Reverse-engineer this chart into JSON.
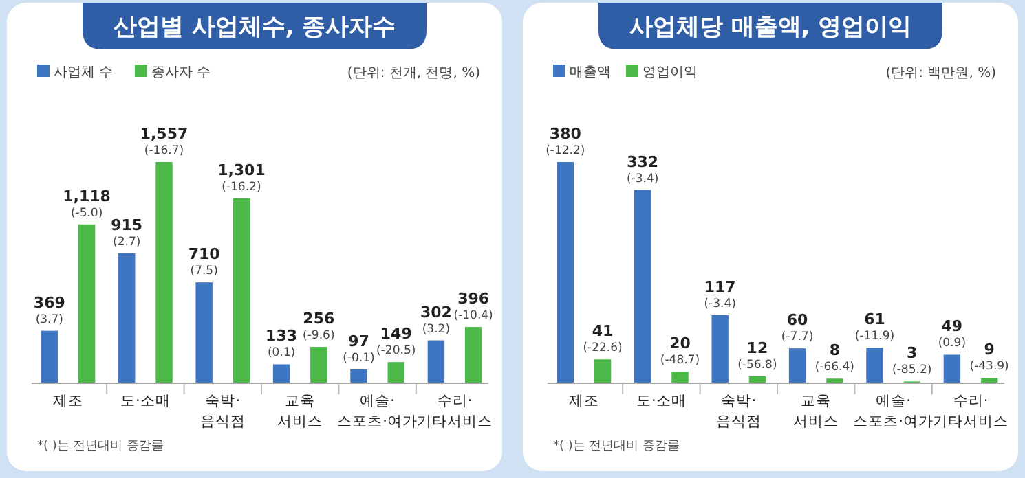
{
  "chart_data": [
    {
      "type": "bar",
      "title": "산업별 사업체수, 종사자수",
      "subtitle": "(단위: 천개, 천명, %)",
      "annotations": [
        "*(   )는 전년대비 증감률"
      ],
      "categories": [
        "제조",
        "도·소매",
        "숙박·\n음식점",
        "교육\n서비스",
        "예술·\n스포츠·여가",
        "수리·\n기타서비스"
      ],
      "legend": "top left",
      "series": [
        {
          "name": "사업체 수",
          "color": "#3f76c2",
          "values": [
            369,
            915,
            710,
            133,
            97,
            302
          ],
          "value_labels": [
            "369\n(3.7)",
            "915\n(2.7)",
            "710\n(7.5)",
            "133\n(0.1)",
            "97\n(-0.1)",
            "302\n(3.2)"
          ]
        },
        {
          "name": "종사자 수",
          "color": "#4cb848",
          "values": [
            1118,
            1557,
            1301,
            256,
            149,
            396
          ],
          "value_labels": [
            "1,118\n(-5.0)",
            "1,557\n(-16.7)",
            "1,301\n(-16.2)",
            "256\n(-9.6)",
            "149\n(-20.5)",
            "396\n(-10.4)"
          ]
        }
      ]
    },
    {
      "type": "bar",
      "title": "사업체당 매출액, 영업이익",
      "subtitle": "(단위: 백만원, %)",
      "annotations": [
        "*(   )는 전년대비 증감률"
      ],
      "categories": [
        "제조",
        "도·소매",
        "숙박·\n음식점",
        "교육\n서비스",
        "예술·\n스포츠·여가",
        "수리·\n기타서비스"
      ],
      "legend": "top left",
      "series": [
        {
          "name": "매출액",
          "color": "#3f76c2",
          "values": [
            380,
            332,
            117,
            60,
            61,
            49
          ],
          "value_labels": [
            "380\n(-12.2)",
            "332\n(-3.4)",
            "117\n(-3.4)",
            "60\n(-7.7)",
            "61\n(-11.9)",
            "49\n(0.9)"
          ]
        },
        {
          "name": "영업이익",
          "color": "#4cb848",
          "values": [
            41,
            20,
            12,
            8,
            3,
            9
          ],
          "value_labels": [
            "41\n(-22.6)",
            "20\n(-48.7)",
            "12\n(-56.8)",
            "8\n(-66.4)",
            "3\n(-85.2)",
            "9\n(-43.9)"
          ]
        }
      ]
    }
  ]
}
